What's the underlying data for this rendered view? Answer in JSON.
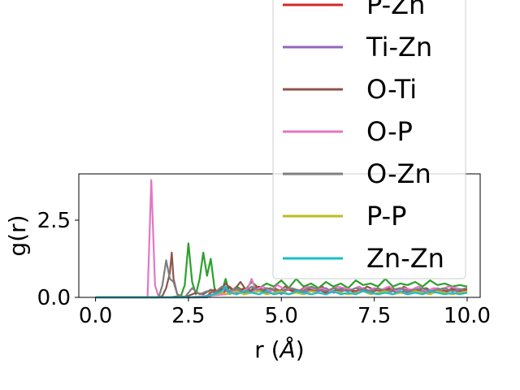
{
  "chart_data": {
    "type": "line",
    "xlabel": "r (",
    "xlabel_symbol": "Å",
    "xlabel_suffix": ")",
    "ylabel": "g(r)",
    "xlim": [
      -0.45,
      10.35
    ],
    "ylim": [
      0,
      4.0
    ],
    "x_ticks": [
      0.0,
      2.5,
      5.0,
      7.5,
      10.0
    ],
    "x_tick_labels": [
      "0.0",
      "2.5",
      "5.0",
      "7.5",
      "10.0"
    ],
    "y_ticks": [
      0.0,
      2.5
    ],
    "y_tick_labels": [
      "0.0",
      "2.5"
    ],
    "grid": false,
    "legend_position": "top-right, extending above the axes",
    "series": [
      {
        "name": "",
        "color": "#2ca02c",
        "x": [
          0.0,
          1.0,
          2.0,
          2.3,
          2.4,
          2.5,
          2.6,
          2.7,
          2.8,
          2.9,
          3.0,
          3.1,
          3.2,
          3.3,
          3.4,
          3.5,
          3.6,
          3.8,
          4.0,
          4.2,
          4.4,
          4.6,
          4.8,
          5.0,
          5.2,
          5.4,
          5.6,
          5.8,
          6.0,
          6.2,
          6.4,
          6.6,
          6.8,
          7.0,
          7.2,
          7.4,
          7.6,
          7.8,
          8.0,
          8.2,
          8.4,
          8.6,
          8.8,
          9.0,
          9.2,
          9.4,
          9.6,
          9.8,
          10.0
        ],
        "y": [
          0.0,
          0.0,
          0.0,
          0.05,
          0.4,
          1.75,
          0.5,
          0.1,
          0.6,
          1.45,
          0.7,
          1.25,
          0.3,
          0.1,
          0.2,
          0.6,
          0.15,
          0.35,
          0.2,
          0.5,
          0.3,
          0.45,
          0.35,
          0.55,
          0.3,
          0.6,
          0.35,
          0.45,
          0.3,
          0.5,
          0.35,
          0.45,
          0.3,
          0.55,
          0.4,
          0.45,
          0.35,
          0.6,
          0.35,
          0.45,
          0.4,
          0.5,
          0.35,
          0.55,
          0.4,
          0.45,
          0.35,
          0.4,
          0.35
        ]
      },
      {
        "name": "P-Zn",
        "color": "#d62728",
        "x": [
          0.0,
          2.8,
          3.0,
          3.2,
          3.4,
          3.6,
          3.8,
          4.0,
          4.2,
          4.4,
          4.6,
          4.8,
          5.0,
          5.2,
          5.4,
          5.6,
          5.8,
          6.0,
          6.2,
          6.4,
          6.6,
          6.8,
          7.0,
          7.2,
          7.4,
          7.6,
          7.8,
          8.0,
          8.2,
          8.4,
          8.6,
          8.8,
          9.0,
          9.2,
          9.4,
          9.6,
          9.8,
          10.0
        ],
        "y": [
          0.0,
          0.0,
          0.05,
          0.25,
          0.1,
          0.35,
          0.15,
          0.3,
          0.2,
          0.35,
          0.15,
          0.3,
          0.2,
          0.25,
          0.15,
          0.3,
          0.2,
          0.25,
          0.15,
          0.3,
          0.2,
          0.25,
          0.2,
          0.3,
          0.15,
          0.25,
          0.2,
          0.3,
          0.15,
          0.25,
          0.2,
          0.3,
          0.2,
          0.25,
          0.15,
          0.3,
          0.2,
          0.25
        ]
      },
      {
        "name": "Ti-Zn",
        "color": "#9467bd",
        "x": [
          0.0,
          3.0,
          3.2,
          3.4,
          3.6,
          3.8,
          4.0,
          4.2,
          4.4,
          4.6,
          4.8,
          5.0,
          5.2,
          5.4,
          5.6,
          5.8,
          6.0,
          6.2,
          6.4,
          6.6,
          6.8,
          7.0,
          7.2,
          7.4,
          7.6,
          7.8,
          8.0,
          8.2,
          8.4,
          8.6,
          8.8,
          9.0,
          9.2,
          9.4,
          9.6,
          9.8,
          10.0
        ],
        "y": [
          0.0,
          0.0,
          0.1,
          0.3,
          0.15,
          0.25,
          0.1,
          0.2,
          0.3,
          0.15,
          0.25,
          0.1,
          0.3,
          0.2,
          0.15,
          0.25,
          0.2,
          0.3,
          0.15,
          0.2,
          0.25,
          0.15,
          0.3,
          0.2,
          0.25,
          0.15,
          0.2,
          0.3,
          0.15,
          0.25,
          0.2,
          0.15,
          0.3,
          0.2,
          0.25,
          0.15,
          0.2
        ]
      },
      {
        "name": "O-Ti",
        "color": "#8c564b",
        "x": [
          0.0,
          1.7,
          1.8,
          1.9,
          2.0,
          2.05,
          2.1,
          2.2,
          2.3,
          2.5,
          2.7,
          2.9,
          3.1,
          3.3,
          3.5,
          3.7,
          3.9,
          4.1,
          4.3,
          4.5,
          4.7,
          4.9,
          5.1,
          5.3,
          5.5,
          5.7,
          5.9,
          6.1,
          6.3,
          6.5,
          6.7,
          6.9,
          7.1,
          7.3,
          7.5,
          7.7,
          7.9,
          8.1,
          8.3,
          8.5,
          8.7,
          8.9,
          9.1,
          9.3,
          9.5,
          9.7,
          9.9
        ],
        "y": [
          0.0,
          0.0,
          0.05,
          0.3,
          0.8,
          1.45,
          0.6,
          0.1,
          0.0,
          0.05,
          0.15,
          0.1,
          0.25,
          0.15,
          0.45,
          0.2,
          0.5,
          0.15,
          0.35,
          0.2,
          0.3,
          0.15,
          0.35,
          0.25,
          0.15,
          0.3,
          0.2,
          0.35,
          0.15,
          0.25,
          0.3,
          0.2,
          0.15,
          0.35,
          0.25,
          0.2,
          0.3,
          0.15,
          0.35,
          0.2,
          0.25,
          0.3,
          0.15,
          0.25,
          0.2,
          0.3,
          0.2
        ]
      },
      {
        "name": "O-P",
        "color": "#e377c2",
        "x": [
          0.0,
          1.3,
          1.4,
          1.5,
          1.6,
          1.7,
          2.0,
          2.5,
          3.0,
          3.5,
          3.7,
          3.9,
          4.1,
          4.2,
          4.3,
          4.5,
          4.7,
          4.9,
          5.1,
          5.3,
          5.5,
          5.7,
          5.9,
          6.1,
          6.3,
          6.5,
          6.7,
          6.9,
          7.1,
          7.3,
          7.5,
          7.7,
          7.9,
          8.1,
          8.3,
          8.5,
          8.7,
          8.9,
          9.1,
          9.3,
          9.5,
          9.7,
          9.9
        ],
        "y": [
          0.0,
          0.0,
          0.0,
          3.8,
          0.4,
          0.0,
          0.0,
          0.0,
          0.05,
          0.1,
          0.2,
          0.15,
          0.3,
          0.6,
          0.25,
          0.35,
          0.2,
          0.4,
          0.25,
          0.3,
          0.2,
          0.35,
          0.25,
          0.3,
          0.2,
          0.35,
          0.3,
          0.25,
          0.35,
          0.2,
          0.3,
          0.25,
          0.35,
          0.2,
          0.3,
          0.25,
          0.35,
          0.2,
          0.3,
          0.25,
          0.35,
          0.3,
          0.25
        ]
      },
      {
        "name": "O-Zn",
        "color": "#7f7f7f",
        "x": [
          0.0,
          1.7,
          1.8,
          1.9,
          2.0,
          2.1,
          2.2,
          2.4,
          2.6,
          2.8,
          3.0,
          3.2,
          3.4,
          3.6,
          3.8,
          4.0,
          4.2,
          4.4,
          4.6,
          4.8,
          5.0,
          5.2,
          5.4,
          5.6,
          5.8,
          6.0,
          6.2,
          6.4,
          6.6,
          6.8,
          7.0,
          7.2,
          7.4,
          7.6,
          7.8,
          8.0,
          8.2,
          8.4,
          8.6,
          8.8,
          9.0,
          9.2,
          9.4,
          9.6,
          9.8,
          10.0
        ],
        "y": [
          0.0,
          0.0,
          0.4,
          1.2,
          0.6,
          0.5,
          0.1,
          0.0,
          0.3,
          0.1,
          0.2,
          0.15,
          0.35,
          0.2,
          0.3,
          0.15,
          0.35,
          0.2,
          0.3,
          0.25,
          0.2,
          0.3,
          0.25,
          0.2,
          0.35,
          0.25,
          0.2,
          0.3,
          0.25,
          0.2,
          0.3,
          0.25,
          0.2,
          0.3,
          0.2,
          0.25,
          0.3,
          0.2,
          0.25,
          0.3,
          0.2,
          0.25,
          0.3,
          0.2,
          0.25,
          0.3
        ]
      },
      {
        "name": "P-P",
        "color": "#bcbd22",
        "x": [
          0.0,
          2.8,
          3.0,
          3.2,
          3.4,
          3.6,
          3.8,
          4.0,
          4.2,
          4.4,
          4.6,
          4.8,
          5.0,
          5.2,
          5.4,
          5.6,
          5.8,
          6.0,
          6.2,
          6.4,
          6.6,
          6.8,
          7.0,
          7.2,
          7.4,
          7.6,
          7.8,
          8.0,
          8.2,
          8.4,
          8.6,
          8.8,
          9.0,
          9.2,
          9.4,
          9.6,
          9.8,
          10.0
        ],
        "y": [
          0.0,
          0.0,
          0.05,
          0.1,
          0.15,
          0.1,
          0.2,
          0.1,
          0.15,
          0.2,
          0.1,
          0.15,
          0.2,
          0.1,
          0.15,
          0.1,
          0.2,
          0.15,
          0.1,
          0.2,
          0.15,
          0.1,
          0.15,
          0.2,
          0.1,
          0.15,
          0.2,
          0.1,
          0.15,
          0.1,
          0.2,
          0.15,
          0.1,
          0.2,
          0.15,
          0.1,
          0.15,
          0.2
        ]
      },
      {
        "name": "Zn-Zn",
        "color": "#17becf",
        "x": [
          0.0,
          2.8,
          3.0,
          3.2,
          3.4,
          3.5,
          3.6,
          3.8,
          4.0,
          4.2,
          4.4,
          4.6,
          4.8,
          5.0,
          5.2,
          5.4,
          5.6,
          5.8,
          6.0,
          6.2,
          6.4,
          6.6,
          6.8,
          7.0,
          7.2,
          7.4,
          7.6,
          7.8,
          8.0,
          8.2,
          8.4,
          8.6,
          8.8,
          9.0,
          9.2,
          9.4,
          9.6,
          9.8,
          10.0
        ],
        "y": [
          0.0,
          0.0,
          0.05,
          0.1,
          0.2,
          0.35,
          0.15,
          0.1,
          0.2,
          0.15,
          0.1,
          0.2,
          0.1,
          0.15,
          0.1,
          0.2,
          0.15,
          0.1,
          0.15,
          0.1,
          0.2,
          0.1,
          0.15,
          0.1,
          0.2,
          0.15,
          0.1,
          0.15,
          0.1,
          0.2,
          0.1,
          0.15,
          0.1,
          0.2,
          0.15,
          0.1,
          0.15,
          0.1,
          0.15
        ]
      }
    ]
  }
}
